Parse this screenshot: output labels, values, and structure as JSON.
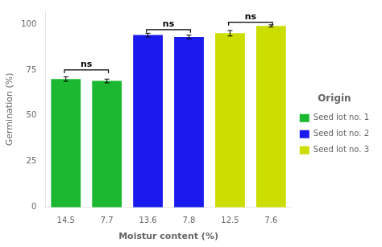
{
  "chart_data": {
    "type": "bar",
    "categories": [
      "14.5",
      "7.7",
      "13.6",
      "7.8",
      "12.5",
      "7.6"
    ],
    "series": [
      {
        "name": "Seed lot no. 1",
        "color": "#1db832",
        "values": [
          70,
          69,
          null,
          null,
          null,
          null
        ],
        "errors": [
          1.2,
          1.0,
          null,
          null,
          null,
          null
        ]
      },
      {
        "name": "Seed lot no. 2",
        "color": "#1a1aee",
        "values": [
          null,
          null,
          94,
          93,
          null,
          null
        ],
        "errors": [
          null,
          null,
          1.0,
          1.0,
          null,
          null
        ]
      },
      {
        "name": "Seed lot no. 3",
        "color": "#ccdd00",
        "values": [
          null,
          null,
          null,
          null,
          95,
          99
        ],
        "errors": [
          null,
          null,
          null,
          null,
          1.5,
          0.6
        ]
      }
    ],
    "ylabel": "Germination (%)",
    "xlabel": "Moistur content (%)",
    "ylim": [
      0,
      107
    ],
    "yticks": [
      0,
      25,
      50,
      75,
      100
    ],
    "grid": false,
    "legend": "right",
    "legend_title": "Origin",
    "annotations": [
      {
        "text": "ns",
        "from": 0,
        "to": 1,
        "y": 75
      },
      {
        "text": "ns",
        "from": 2,
        "to": 3,
        "y": 97
      },
      {
        "text": "ns",
        "from": 4,
        "to": 5,
        "y": 101
      }
    ]
  }
}
